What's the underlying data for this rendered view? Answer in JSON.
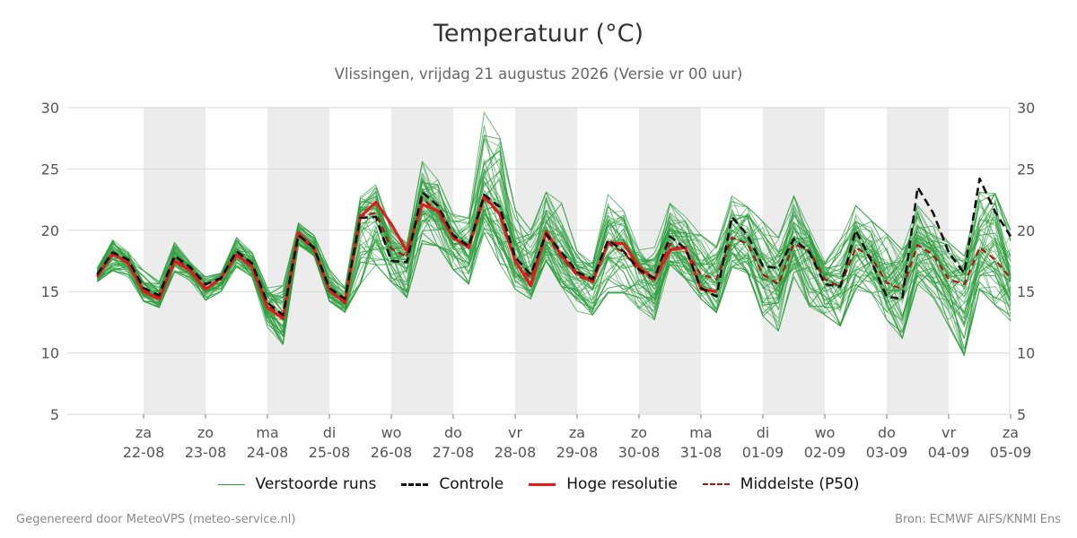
{
  "header": {
    "title": "Temperatuur (°C)",
    "subtitle": "Vlissingen, vrijdag 21 augustus 2026 (Versie vr 00 uur)"
  },
  "legend": {
    "perturbed": "Verstoorde runs",
    "control": "Controle",
    "high_res": "Hoge resolutie",
    "median": "Middelste (P50)"
  },
  "footer": {
    "left": "Gegenereerd door MeteoVPS (meteo-service.nl)",
    "right": "Bron: ECMWF AIFS/KNMI Ens"
  },
  "colors": {
    "perturbed": "#2e9e3e",
    "control": "#111111",
    "high_res": "#e31a1c",
    "median": "#b01515",
    "weekend_band": "#ececec",
    "grid": "#d9d9d9"
  },
  "chart_data": {
    "type": "line",
    "ylim": [
      5,
      30
    ],
    "yticks": [
      5,
      10,
      15,
      20,
      25,
      30
    ],
    "grid": true,
    "legend_position": "bottom",
    "x_unit": "days from 22-08 00 uur",
    "xlim": [
      -0.75,
      14.0
    ],
    "day_ticks": [
      {
        "weekday": "za",
        "date": "22-08"
      },
      {
        "weekday": "zo",
        "date": "23-08"
      },
      {
        "weekday": "ma",
        "date": "24-08"
      },
      {
        "weekday": "di",
        "date": "25-08"
      },
      {
        "weekday": "wo",
        "date": "26-08"
      },
      {
        "weekday": "do",
        "date": "27-08"
      },
      {
        "weekday": "vr",
        "date": "28-08"
      },
      {
        "weekday": "za",
        "date": "29-08"
      },
      {
        "weekday": "zo",
        "date": "30-08"
      },
      {
        "weekday": "ma",
        "date": "31-08"
      },
      {
        "weekday": "di",
        "date": "01-09"
      },
      {
        "weekday": "wo",
        "date": "02-09"
      },
      {
        "weekday": "do",
        "date": "03-09"
      },
      {
        "weekday": "vr",
        "date": "04-09"
      },
      {
        "weekday": "za",
        "date": "05-09"
      }
    ],
    "shaded_days": [
      0,
      2,
      4,
      6,
      8,
      10,
      12
    ],
    "high_res": {
      "name": "Hoge resolutie",
      "x": [
        -0.75,
        -0.5,
        -0.25,
        0,
        0.25,
        0.5,
        0.75,
        1,
        1.25,
        1.5,
        1.75,
        2,
        2.25,
        2.5,
        2.75,
        3,
        3.25,
        3.5,
        3.75,
        4,
        4.25,
        4.5,
        4.75,
        5,
        5.25,
        5.5,
        5.75,
        6,
        6.25,
        6.5,
        6.75,
        7,
        7.25,
        7.5,
        7.75,
        8,
        8.25,
        8.5,
        8.75,
        9,
        9.25
      ],
      "values": [
        16.2,
        18.1,
        17.3,
        15.0,
        14.4,
        17.5,
        16.7,
        15.2,
        16.1,
        18.0,
        17.0,
        13.7,
        12.8,
        19.8,
        18.5,
        15.1,
        14.1,
        21.1,
        22.3,
        20.5,
        18.3,
        22.1,
        21.6,
        19.4,
        18.6,
        22.8,
        21.3,
        17.5,
        15.5,
        19.9,
        17.9,
        16.5,
        15.8,
        19.0,
        18.9,
        17.0,
        16.0,
        18.4,
        18.6,
        15.2,
        15.0
      ]
    },
    "control": {
      "name": "Controle",
      "x": [
        -0.75,
        -0.5,
        -0.25,
        0,
        0.25,
        0.5,
        0.75,
        1,
        1.25,
        1.5,
        1.75,
        2,
        2.25,
        2.5,
        2.75,
        3,
        3.25,
        3.5,
        3.75,
        4,
        4.25,
        4.5,
        4.75,
        5,
        5.25,
        5.5,
        5.75,
        6,
        6.25,
        6.5,
        6.75,
        7,
        7.25,
        7.5,
        7.75,
        8,
        8.25,
        8.5,
        8.75,
        9,
        9.25,
        9.5,
        9.75,
        10,
        10.25,
        10.5,
        10.75,
        11,
        11.25,
        11.5,
        11.75,
        12,
        12.25,
        12.5,
        12.75,
        13,
        13.25,
        13.5,
        13.75,
        14
      ],
      "values": [
        16.4,
        18.2,
        17.6,
        15.3,
        14.7,
        17.9,
        17.0,
        15.6,
        16.1,
        18.3,
        17.3,
        14.1,
        13.1,
        19.6,
        18.6,
        15.3,
        14.4,
        21.0,
        21.1,
        17.5,
        17.4,
        23.1,
        22.0,
        19.6,
        18.7,
        22.9,
        21.9,
        17.8,
        16.4,
        19.7,
        18.2,
        16.6,
        16.0,
        19.2,
        18.3,
        16.8,
        16.1,
        19.5,
        18.5,
        15.3,
        14.6,
        21.1,
        19.6,
        17.1,
        16.9,
        19.3,
        18.2,
        15.6,
        15.4,
        20.0,
        17.5,
        14.6,
        14.4,
        23.5,
        21.4,
        18.2,
        16.5,
        24.2,
        21.5,
        19.5
      ]
    },
    "median": {
      "name": "Middelste (P50)",
      "x": [
        -0.75,
        -0.5,
        -0.25,
        0,
        0.25,
        0.5,
        0.75,
        1,
        1.25,
        1.5,
        1.75,
        2,
        2.25,
        2.5,
        2.75,
        3,
        3.25,
        3.5,
        3.75,
        4,
        4.25,
        4.5,
        4.75,
        5,
        5.25,
        5.5,
        5.75,
        6,
        6.25,
        6.5,
        6.75,
        7,
        7.25,
        7.5,
        7.75,
        8,
        8.25,
        8.5,
        8.75,
        9,
        9.25,
        9.5,
        9.75,
        10,
        10.25,
        10.5,
        10.75,
        11,
        11.25,
        11.5,
        11.75,
        12,
        12.25,
        12.5,
        12.75,
        13,
        13.25,
        13.5,
        13.75,
        14
      ],
      "values": [
        16.3,
        18.0,
        17.4,
        15.1,
        14.5,
        17.7,
        16.8,
        15.3,
        16.0,
        18.1,
        17.1,
        13.9,
        12.9,
        19.6,
        18.4,
        15.1,
        14.2,
        21.2,
        21.4,
        18.5,
        17.8,
        22.6,
        21.5,
        19.3,
        18.6,
        22.7,
        21.2,
        17.4,
        16.1,
        19.6,
        17.8,
        16.3,
        15.8,
        18.9,
        18.2,
        16.7,
        15.9,
        18.9,
        18.3,
        16.4,
        16.0,
        19.4,
        18.9,
        16.4,
        15.6,
        18.9,
        18.3,
        16.0,
        15.4,
        18.6,
        17.8,
        15.7,
        15.2,
        18.8,
        18.0,
        16.0,
        15.6,
        18.6,
        17.6,
        16.1
      ]
    },
    "perturbed_runs": {
      "name": "Verstoorde runs",
      "count": 50,
      "x": [
        -0.75,
        -0.5,
        -0.25,
        0,
        0.25,
        0.5,
        0.75,
        1,
        1.25,
        1.5,
        1.75,
        2,
        2.25,
        2.5,
        2.75,
        3,
        3.25,
        3.5,
        3.75,
        4,
        4.25,
        4.5,
        4.75,
        5,
        5.25,
        5.5,
        5.75,
        6,
        6.25,
        6.5,
        6.75,
        7,
        7.25,
        7.5,
        7.75,
        8,
        8.25,
        8.5,
        8.75,
        9,
        9.25,
        9.5,
        9.75,
        10,
        10.25,
        10.5,
        10.75,
        11,
        11.25,
        11.5,
        11.75,
        12,
        12.25,
        12.5,
        12.75,
        13,
        13.25,
        13.5,
        13.75,
        14
      ],
      "p_min": [
        15.8,
        16.7,
        16.2,
        14.2,
        13.7,
        16.6,
        15.9,
        14.3,
        15.0,
        17.0,
        16.2,
        12.1,
        10.7,
        18.8,
        17.9,
        14.2,
        13.3,
        15.6,
        17.2,
        15.8,
        14.5,
        18.9,
        18.7,
        16.8,
        15.6,
        19.8,
        17.3,
        15.2,
        14.4,
        17.5,
        15.4,
        13.4,
        13.1,
        14.9,
        14.9,
        13.6,
        12.7,
        17.2,
        16.0,
        14.4,
        13.3,
        17.0,
        16.5,
        13.0,
        11.8,
        16.2,
        13.8,
        13.1,
        12.2,
        15.2,
        14.9,
        12.7,
        11.2,
        15.6,
        14.5,
        12.2,
        9.8,
        15.2,
        13.9,
        12.6
      ],
      "p_max": [
        16.9,
        19.2,
        18.2,
        16.7,
        15.8,
        19.0,
        17.4,
        16.2,
        16.5,
        19.4,
        18.2,
        15.3,
        15.5,
        20.6,
        19.6,
        16.8,
        15.3,
        22.7,
        23.7,
        20.1,
        18.9,
        25.6,
        24.1,
        21.3,
        21.0,
        29.6,
        27.6,
        21.7,
        20.0,
        23.1,
        22.2,
        18.3,
        17.3,
        22.9,
        21.6,
        18.4,
        18.6,
        22.2,
        21.1,
        19.6,
        18.7,
        22.8,
        21.9,
        20.7,
        19.4,
        22.8,
        20.1,
        17.4,
        19.2,
        22.0,
        20.8,
        19.7,
        18.4,
        22.0,
        20.5,
        19.0,
        17.9,
        23.1,
        23.0,
        20.0
      ]
    }
  }
}
